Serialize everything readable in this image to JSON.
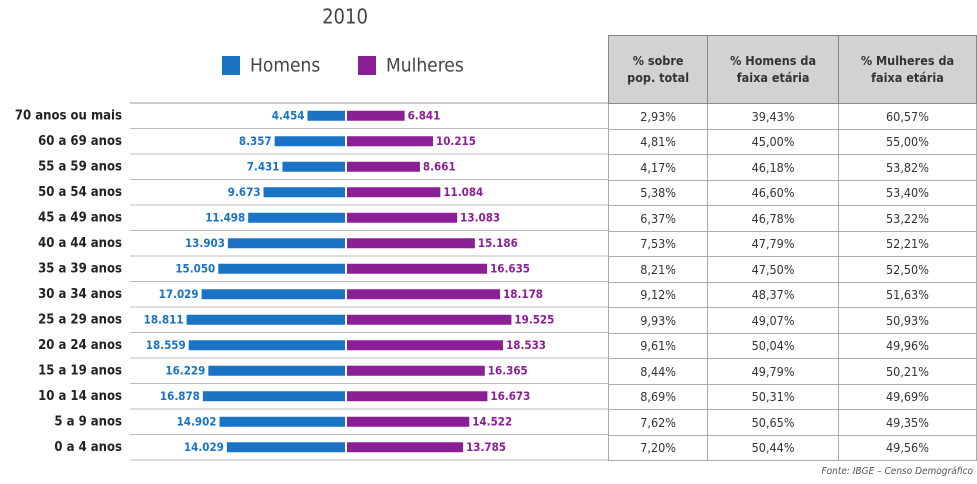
{
  "chart_data": {
    "type": "pyramid",
    "title": "2010",
    "categories": [
      "70 anos ou mais",
      "60 a 69 anos",
      "55 a 59 anos",
      "50 a 54 anos",
      "45 a 49 anos",
      "40 a 44 anos",
      "35 a 39 anos",
      "30 a 34 anos",
      "25 a 29 anos",
      "20 a 24 anos",
      "15 a 19 anos",
      "10 a 14 anos",
      "5 a 9 anos",
      "0 a 4 anos"
    ],
    "series": [
      {
        "name": "Homens",
        "color": "#1a73c5",
        "values": [
          4454,
          8357,
          7431,
          9673,
          11498,
          13903,
          15050,
          17029,
          18811,
          18559,
          16229,
          16878,
          14902,
          14029
        ],
        "value_labels": [
          "4.454",
          "8.357",
          "7.431",
          "9.673",
          "11.498",
          "13.903",
          "15.050",
          "17.029",
          "18.811",
          "18.559",
          "16.229",
          "16.878",
          "14.902",
          "14.029"
        ]
      },
      {
        "name": "Mulheres",
        "color": "#8b1f95",
        "values": [
          6841,
          10215,
          8661,
          11084,
          13083,
          15186,
          16635,
          18178,
          19525,
          18533,
          16365,
          16673,
          14522,
          13785
        ],
        "value_labels": [
          "6.841",
          "10.215",
          "8.661",
          "11.084",
          "13.083",
          "15.186",
          "16.635",
          "18.178",
          "19.525",
          "18.533",
          "16.365",
          "16.673",
          "14.522",
          "13.785"
        ]
      }
    ]
  },
  "table": {
    "columns": [
      "% sobre pop. total",
      "% Homens da faixa etária",
      "% Mulheres da faixa etária"
    ],
    "rows": [
      [
        "2,93%",
        "39,43%",
        "60,57%"
      ],
      [
        "4,81%",
        "45,00%",
        "55,00%"
      ],
      [
        "4,17%",
        "46,18%",
        "53,82%"
      ],
      [
        "5,38%",
        "46,60%",
        "53,40%"
      ],
      [
        "6,37%",
        "46,78%",
        "53,22%"
      ],
      [
        "7,53%",
        "47,79%",
        "52,21%"
      ],
      [
        "8,21%",
        "47,50%",
        "52,50%"
      ],
      [
        "9,12%",
        "48,37%",
        "51,63%"
      ],
      [
        "9,93%",
        "49,07%",
        "50,93%"
      ],
      [
        "9,61%",
        "50,04%",
        "49,96%"
      ],
      [
        "8,44%",
        "49,79%",
        "50,21%"
      ],
      [
        "8,69%",
        "50,31%",
        "49,69%"
      ],
      [
        "7,62%",
        "50,65%",
        "49,35%"
      ],
      [
        "7,20%",
        "50,44%",
        "49,56%"
      ]
    ]
  },
  "source": "Fonte: IBGE – Censo Demográfico"
}
